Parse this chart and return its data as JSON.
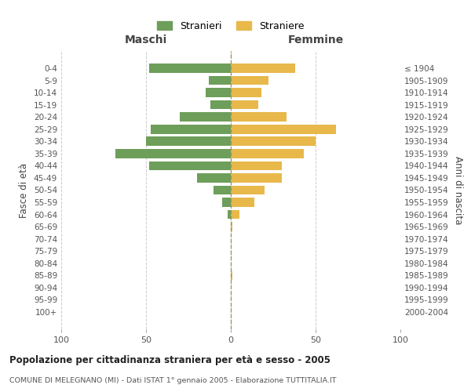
{
  "age_groups": [
    "0-4",
    "5-9",
    "10-14",
    "15-19",
    "20-24",
    "25-29",
    "30-34",
    "35-39",
    "40-44",
    "45-49",
    "50-54",
    "55-59",
    "60-64",
    "65-69",
    "70-74",
    "75-79",
    "80-84",
    "85-89",
    "90-94",
    "95-99",
    "100+"
  ],
  "birth_years": [
    "2000-2004",
    "1995-1999",
    "1990-1994",
    "1985-1989",
    "1980-1984",
    "1975-1979",
    "1970-1974",
    "1965-1969",
    "1960-1964",
    "1955-1959",
    "1950-1954",
    "1945-1949",
    "1940-1944",
    "1935-1939",
    "1930-1934",
    "1925-1929",
    "1920-1924",
    "1915-1919",
    "1910-1914",
    "1905-1909",
    "≤ 1904"
  ],
  "maschi": [
    48,
    13,
    15,
    12,
    30,
    47,
    50,
    68,
    48,
    20,
    10,
    5,
    2,
    0,
    0,
    0,
    0,
    0,
    0,
    0,
    0
  ],
  "femmine": [
    38,
    22,
    18,
    16,
    33,
    62,
    50,
    43,
    30,
    30,
    20,
    14,
    5,
    1,
    0,
    0,
    0,
    1,
    0,
    0,
    0
  ],
  "male_color": "#6d9e5a",
  "female_color": "#e8b84b",
  "background_color": "#ffffff",
  "grid_color": "#cccccc",
  "center_line_color": "#999966",
  "title": "Popolazione per cittadinanza straniera per età e sesso - 2005",
  "subtitle": "COMUNE DI MELEGNANO (MI) - Dati ISTAT 1° gennaio 2005 - Elaborazione TUTTITALIA.IT",
  "xlabel_left": "Maschi",
  "xlabel_right": "Femmine",
  "ylabel_left": "Fasce di età",
  "ylabel_right": "Anni di nascita",
  "legend_stranieri": "Stranieri",
  "legend_straniere": "Straniere",
  "xlim": 100,
  "bar_height": 0.75
}
